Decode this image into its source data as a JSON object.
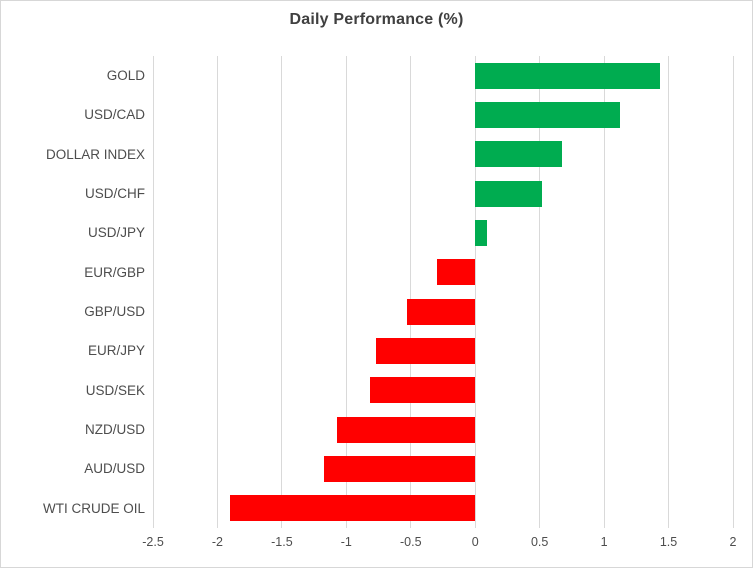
{
  "title": "Daily Performance (%)",
  "chart_data": {
    "type": "bar",
    "orientation": "horizontal",
    "title": "Daily Performance (%)",
    "xlabel": "",
    "ylabel": "",
    "categories": [
      "GOLD",
      "USD/CAD",
      "DOLLAR INDEX",
      "USD/CHF",
      "USD/JPY",
      "EUR/GBP",
      "GBP/USD",
      "EUR/JPY",
      "USD/SEK",
      "NZD/USD",
      "AUD/USD",
      "WTI CRUDE OIL"
    ],
    "values": [
      1.43,
      1.12,
      0.67,
      0.52,
      0.09,
      -0.3,
      -0.53,
      -0.77,
      -0.82,
      -1.07,
      -1.17,
      -1.9
    ],
    "xlim": [
      -2.5,
      2
    ],
    "xticks": [
      -2.5,
      -2,
      -1.5,
      -1,
      -0.5,
      0,
      0.5,
      1,
      1.5,
      2
    ],
    "xtick_labels": [
      "-2.5",
      "-2",
      "-1.5",
      "-1",
      "-0.5",
      "0",
      "0.5",
      "1",
      "1.5",
      "2"
    ],
    "grid": "vertical",
    "legend_position": "none",
    "positive_color": "#00AC50",
    "negative_color": "#FF0000",
    "gridline_color": "#D9D9D9",
    "axis_text_color": "#4D4D4D",
    "title_color": "#404040",
    "border_color": "#D7D7D7"
  }
}
